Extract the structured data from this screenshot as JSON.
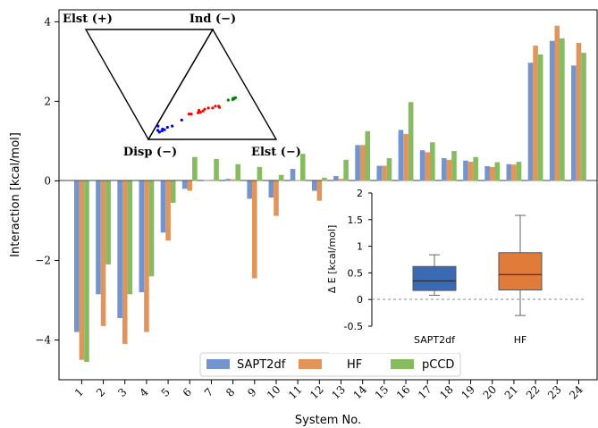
{
  "chart_data": [
    {
      "type": "bar",
      "xlabel": "System No.",
      "ylabel": "Interaction [kcal/mol]",
      "ylim": [
        -5.0,
        4.3
      ],
      "yticks": [
        -4,
        -2,
        0,
        2,
        4
      ],
      "yticklabels": [
        "−4",
        "−2",
        "0",
        "2",
        "4"
      ],
      "categories": [
        "1",
        "2",
        "3",
        "4",
        "5",
        "6",
        "7",
        "8",
        "9",
        "10",
        "11",
        "12",
        "13",
        "14",
        "15",
        "16",
        "17",
        "18",
        "19",
        "20",
        "21",
        "22",
        "23",
        "24"
      ],
      "legend_position": "bottom-center",
      "series": [
        {
          "name": "SAPT2df",
          "color": "#7394cc",
          "values": [
            -3.8,
            -2.85,
            -3.45,
            -2.8,
            -1.3,
            -0.2,
            0.02,
            0.05,
            -0.45,
            -0.42,
            0.3,
            -0.25,
            0.12,
            0.9,
            0.38,
            1.28,
            0.77,
            0.57,
            0.51,
            0.37,
            0.42,
            2.97,
            3.52,
            2.9
          ]
        },
        {
          "name": "HF",
          "color": "#e1955a",
          "values": [
            -4.5,
            -3.65,
            -4.1,
            -3.8,
            -1.5,
            -0.25,
            0.03,
            0.04,
            -2.45,
            -0.88,
            0.02,
            -0.5,
            0.05,
            0.9,
            0.38,
            1.18,
            0.72,
            0.53,
            0.48,
            0.35,
            0.41,
            3.4,
            3.9,
            3.47
          ]
        },
        {
          "name": "pCCD",
          "color": "#86bb5f",
          "values": [
            -4.55,
            -2.1,
            -2.85,
            -2.4,
            -0.55,
            0.6,
            0.55,
            0.42,
            0.35,
            0.15,
            0.68,
            0.08,
            0.53,
            1.25,
            0.57,
            1.98,
            0.97,
            0.75,
            0.6,
            0.47,
            0.48,
            3.18,
            3.58,
            3.22
          ]
        }
      ]
    },
    {
      "type": "scatter",
      "subtype": "ternary",
      "vertex_labels": [
        "Elst (+)",
        "Ind (−)",
        "Disp (−)",
        "Elst (−)"
      ],
      "series": [
        {
          "color": "#0000ff",
          "points_ternary": [
            [
              0.18,
              0.78
            ],
            [
              0.08,
              0.88
            ],
            [
              0.1,
              0.86
            ],
            [
              0.12,
              0.84
            ],
            [
              0.1,
              0.83
            ],
            [
              0.14,
              0.8
            ],
            [
              0.06,
              0.85
            ],
            [
              0.25,
              0.68
            ],
            [
              0.05,
              0.78
            ]
          ]
        },
        {
          "color": "#ff0000",
          "points_ternary": [
            [
              0.4,
              0.55
            ],
            [
              0.43,
              0.5
            ],
            [
              0.46,
              0.48
            ],
            [
              0.5,
              0.48
            ],
            [
              0.52,
              0.45
            ],
            [
              0.38,
              0.56
            ],
            [
              0.42,
              0.53
            ],
            [
              0.56,
              0.47
            ],
            [
              0.55,
              0.45
            ],
            [
              0.3,
              0.58
            ],
            [
              0.32,
              0.58
            ],
            [
              0.38,
              0.52
            ]
          ]
        },
        {
          "color": "#008000",
          "points_ternary": [
            [
              0.66,
              0.32
            ],
            [
              0.67,
              0.33
            ],
            [
              0.68,
              0.31
            ],
            [
              0.62,
              0.35
            ],
            [
              0.66,
              0.34
            ]
          ]
        }
      ]
    },
    {
      "type": "box",
      "ylabel": "Δ E  [kcal/mol]",
      "ylim": [
        -0.5,
        2.0
      ],
      "yticks": [
        -0.5,
        0,
        0.5,
        1,
        1.5,
        2
      ],
      "yticklabels": [
        "-0.5",
        "0",
        "0.5",
        "1",
        "1.5",
        "2"
      ],
      "reference_line": 0,
      "boxes": [
        {
          "label": "SAPT2df",
          "color": "#3a6ab4",
          "whisker_low": 0.08,
          "q1": 0.17,
          "median": 0.35,
          "q3": 0.62,
          "whisker_high": 0.84
        },
        {
          "label": "HF",
          "color": "#e07b39",
          "whisker_low": -0.3,
          "q1": 0.18,
          "median": 0.47,
          "q3": 0.88,
          "whisker_high": 1.58
        }
      ]
    }
  ]
}
